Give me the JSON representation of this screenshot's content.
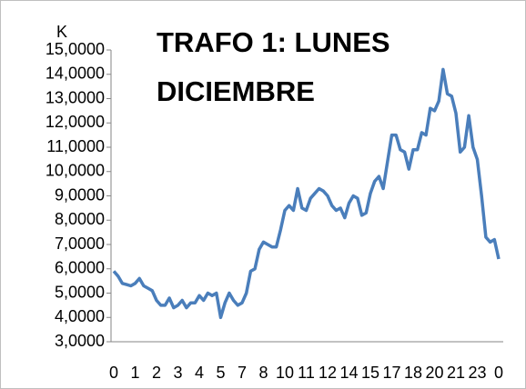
{
  "chart_data": {
    "type": "line",
    "title": "TRAFO 1: LUNES DICIEMBRE",
    "ylabel": "K",
    "categories": [
      "0",
      null,
      null,
      null,
      null,
      "1",
      null,
      null,
      null,
      null,
      "2",
      null,
      null,
      null,
      null,
      "3",
      null,
      null,
      null,
      null,
      "4",
      null,
      null,
      null,
      null,
      "5",
      null,
      null,
      null,
      null,
      "7",
      null,
      null,
      null,
      null,
      "8",
      null,
      null,
      null,
      null,
      "10",
      null,
      null,
      null,
      null,
      "11",
      null,
      null,
      null,
      null,
      "12",
      null,
      null,
      null,
      null,
      "14",
      null,
      null,
      null,
      null,
      "15",
      null,
      null,
      null,
      null,
      "17",
      null,
      null,
      null,
      null,
      "18",
      null,
      null,
      null,
      null,
      "20",
      null,
      null,
      null,
      null,
      "21",
      null,
      null,
      null,
      null,
      "23",
      null,
      null,
      null,
      null,
      "0"
    ],
    "series": [
      {
        "name": "TRAFO 1",
        "color": "#4a7ebb",
        "values": [
          5.9,
          5.7,
          5.4,
          5.35,
          5.3,
          5.4,
          5.6,
          5.3,
          5.2,
          5.1,
          4.7,
          4.5,
          4.5,
          4.8,
          4.4,
          4.5,
          4.7,
          4.4,
          4.6,
          4.6,
          4.9,
          4.7,
          5.0,
          4.9,
          5.0,
          4.0,
          4.6,
          5.0,
          4.7,
          4.5,
          4.6,
          5.0,
          5.9,
          6.0,
          6.8,
          7.1,
          7.0,
          6.9,
          6.9,
          7.6,
          8.4,
          8.6,
          8.4,
          9.3,
          8.5,
          8.4,
          8.9,
          9.1,
          9.3,
          9.2,
          9.0,
          8.6,
          8.4,
          8.5,
          8.1,
          8.7,
          9.0,
          8.9,
          8.2,
          8.3,
          9.1,
          9.6,
          9.8,
          9.3,
          10.4,
          11.5,
          11.5,
          10.9,
          10.8,
          10.1,
          10.9,
          10.9,
          11.6,
          11.5,
          12.6,
          12.5,
          12.9,
          14.2,
          13.2,
          13.1,
          12.4,
          10.8,
          11.0,
          12.3,
          11.0,
          10.5,
          9.0,
          7.3,
          7.1,
          7.2,
          6.4
        ]
      }
    ],
    "ylim": [
      3,
      15
    ],
    "yticks": [
      {
        "value": 3,
        "label": "3,0000"
      },
      {
        "value": 4,
        "label": "4,0000"
      },
      {
        "value": 5,
        "label": "5,0000"
      },
      {
        "value": 6,
        "label": "6,0000"
      },
      {
        "value": 7,
        "label": "7,0000"
      },
      {
        "value": 8,
        "label": "8,0000"
      },
      {
        "value": 9,
        "label": "9,0000"
      },
      {
        "value": 10,
        "label": "10,0000"
      },
      {
        "value": 11,
        "label": "11,0000"
      },
      {
        "value": 12,
        "label": "12,0000"
      },
      {
        "value": 13,
        "label": "13,0000"
      },
      {
        "value": 14,
        "label": "14,0000"
      },
      {
        "value": 15,
        "label": "15,0000"
      }
    ],
    "grid": false
  }
}
